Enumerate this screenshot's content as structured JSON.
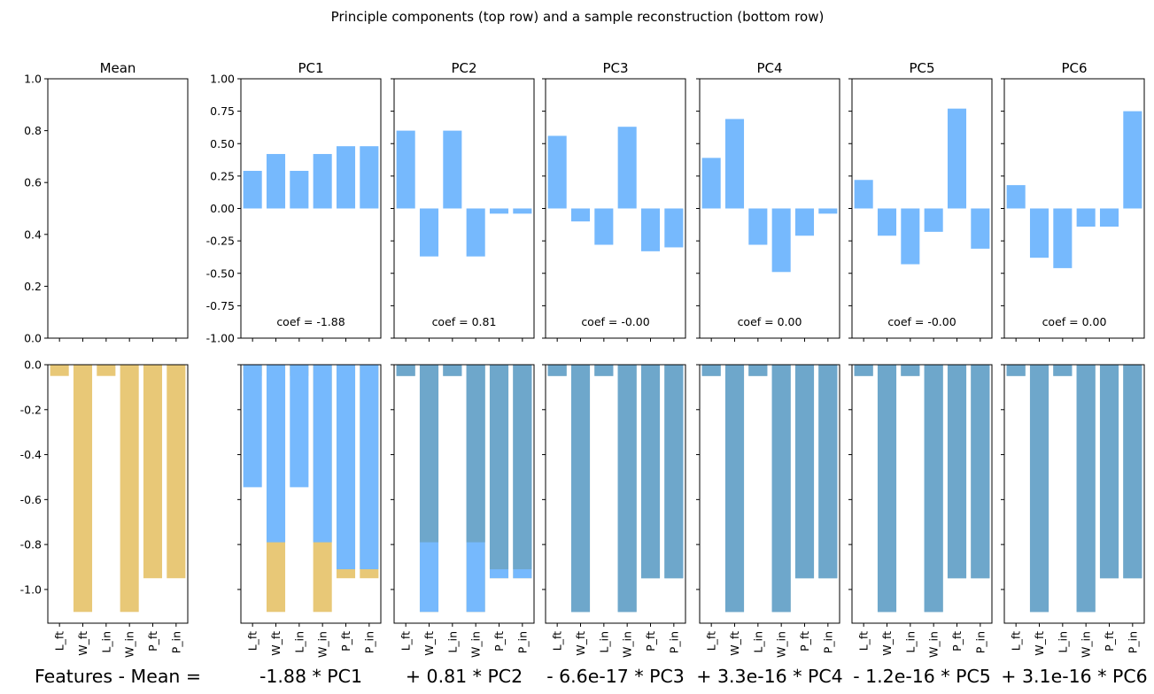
{
  "chart_data": {
    "type": "bar",
    "title": "Principle components (top row) and a sample reconstruction (bottom row)",
    "features": [
      "L_ft",
      "W_ft",
      "L_in",
      "W_in",
      "P_ft",
      "P_in"
    ],
    "colors": {
      "pc_bar": "#76b9fd",
      "mean_bar": "#e8c877",
      "reconstruction_bar": "#6ea7cb",
      "axes": "#000000"
    },
    "top_row": {
      "panels": [
        {
          "title": "Mean",
          "values": [],
          "coef_label": ""
        },
        {
          "title": "PC1",
          "values": [
            0.29,
            0.42,
            0.29,
            0.42,
            0.48,
            0.48
          ],
          "coef_label": "coef = -1.88"
        },
        {
          "title": "PC2",
          "values": [
            0.6,
            -0.37,
            0.6,
            -0.37,
            -0.04,
            -0.04
          ],
          "coef_label": "coef = 0.81"
        },
        {
          "title": "PC3",
          "values": [
            0.56,
            -0.1,
            -0.28,
            0.63,
            -0.33,
            -0.3
          ],
          "coef_label": "coef = -0.00"
        },
        {
          "title": "PC4",
          "values": [
            0.39,
            0.69,
            -0.28,
            -0.49,
            -0.21,
            -0.04
          ],
          "coef_label": "coef = 0.00"
        },
        {
          "title": "PC5",
          "values": [
            0.22,
            -0.21,
            -0.43,
            -0.18,
            0.77,
            -0.31
          ],
          "coef_label": "coef = -0.00"
        },
        {
          "title": "PC6",
          "values": [
            0.18,
            -0.38,
            -0.46,
            -0.14,
            -0.14,
            0.75
          ],
          "coef_label": "coef = 0.00"
        }
      ],
      "mean_ylim": [
        0,
        1.0
      ],
      "mean_yticks": [
        "0.0",
        "0.2",
        "0.4",
        "0.6",
        "0.8",
        "1.0"
      ],
      "mean_ytick_values": [
        0,
        0.2,
        0.4,
        0.6,
        0.8,
        1.0
      ],
      "pc_ylim": [
        -1.0,
        1.0
      ],
      "pc_yticks": [
        "-1.00",
        "-0.75",
        "-0.50",
        "-0.25",
        "0.00",
        "0.25",
        "0.50",
        "0.75",
        "1.00"
      ],
      "pc_ytick_values": [
        -1.0,
        -0.75,
        -0.5,
        -0.25,
        0,
        0.25,
        0.5,
        0.75,
        1.0
      ]
    },
    "bottom_row": {
      "ylim": [
        -1.15,
        0.0
      ],
      "yticks": [
        "-1.0",
        "-0.8",
        "-0.6",
        "-0.4",
        "-0.2",
        "0.0"
      ],
      "ytick_values": [
        -1.0,
        -0.8,
        -0.6,
        -0.4,
        -0.2,
        0.0
      ],
      "target": [
        -0.05,
        -1.1,
        -0.05,
        -1.1,
        -0.95,
        -0.95
      ],
      "stages": [
        {
          "previous": [],
          "current": []
        },
        {
          "previous": [
            0,
            0,
            0,
            0,
            0,
            0
          ],
          "current": [
            -0.545,
            -0.79,
            -0.545,
            -0.79,
            -0.91,
            -0.91
          ]
        },
        {
          "previous": [
            -0.545,
            -0.79,
            -0.545,
            -0.79,
            -0.91,
            -0.91
          ],
          "current": [
            -0.05,
            -1.1,
            -0.05,
            -1.1,
            -0.95,
            -0.95
          ]
        },
        {
          "previous": [
            -0.05,
            -1.1,
            -0.05,
            -1.1,
            -0.95,
            -0.95
          ],
          "current": [
            -0.05,
            -1.1,
            -0.05,
            -1.1,
            -0.95,
            -0.95
          ]
        },
        {
          "previous": [
            -0.05,
            -1.1,
            -0.05,
            -1.1,
            -0.95,
            -0.95
          ],
          "current": [
            -0.05,
            -1.1,
            -0.05,
            -1.1,
            -0.95,
            -0.95
          ]
        },
        {
          "previous": [
            -0.05,
            -1.1,
            -0.05,
            -1.1,
            -0.95,
            -0.95
          ],
          "current": [
            -0.05,
            -1.1,
            -0.05,
            -1.1,
            -0.95,
            -0.95
          ]
        },
        {
          "previous": [
            -0.05,
            -1.1,
            -0.05,
            -1.1,
            -0.95,
            -0.95
          ],
          "current": [
            -0.05,
            -1.1,
            -0.05,
            -1.1,
            -0.95,
            -0.95
          ]
        }
      ],
      "equation_labels": [
        "Features - Mean =",
        "-1.88 * PC1",
        "+ 0.81 * PC2",
        "- 6.6e-17 * PC3",
        "+ 3.3e-16 * PC4",
        "- 1.2e-16 * PC5",
        "+ 3.1e-16 * PC6"
      ]
    }
  }
}
